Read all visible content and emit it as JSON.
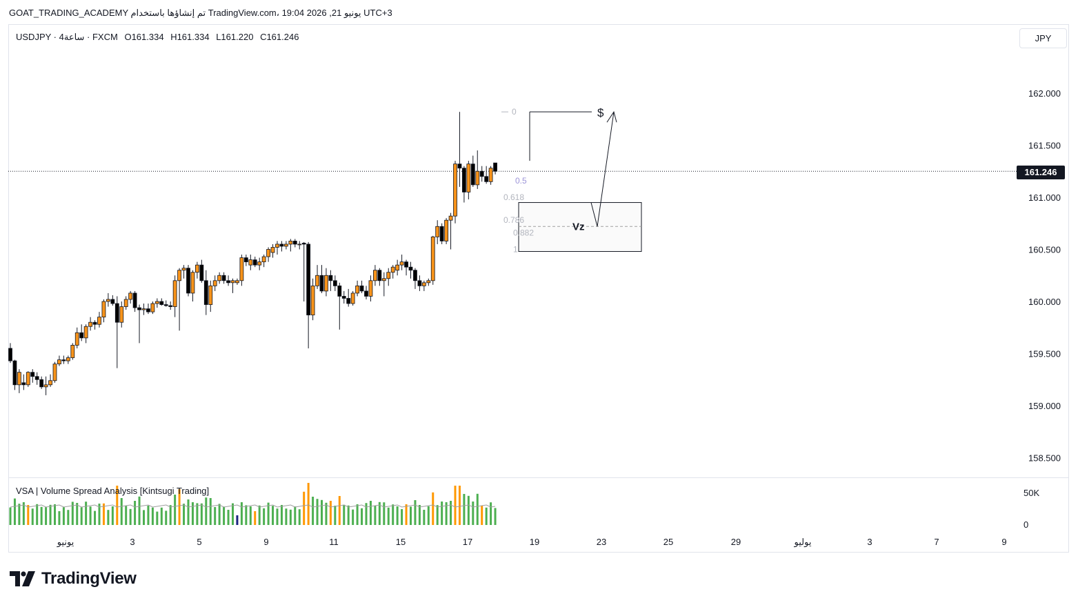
{
  "header": {
    "caption": "GOAT_TRADING_ACADEMY تم إنشاؤها باستخدام TradingView.com، 19:04 2026 ,21 يونيو UTC+3"
  },
  "legend": {
    "symbol": "USDJPY · 4ساعة · FXCM",
    "open": "O161.334",
    "high": "H161.334",
    "low": "L161.220",
    "close": "C161.246"
  },
  "currency_button": "JPY",
  "current_price": "161.246",
  "indicator": {
    "title": "VSA | Volume Spread Analysis [Kintsugi Trading]",
    "axis_labels": [
      "50K",
      "0"
    ]
  },
  "drawing_labels": {
    "dollar": "$",
    "zone": "Vz",
    "fib": [
      "0",
      "0.5",
      "0.618",
      "0.786",
      "0.882",
      "1"
    ]
  },
  "brand": "TradingView",
  "colors": {
    "bull": "#f7931a",
    "bear": "#000000",
    "vol_green": "#4caf50",
    "vol_orange": "#ff9800",
    "vol_navy": "#1a237e",
    "vol_ma": "#9e9e9e"
  },
  "chart_data": {
    "type": "candlestick",
    "symbol": "USDJPY",
    "timeframe": "4H",
    "y_ticks": [
      "162.000",
      "161.500",
      "161.000",
      "160.500",
      "160.000",
      "159.500",
      "159.000",
      "158.500"
    ],
    "ylim": [
      158.3,
      162.4
    ],
    "x_tick_labels": [
      "يونيو",
      "3",
      "5",
      "9",
      "11",
      "15",
      "17",
      "19",
      "23",
      "25",
      "29",
      "يوليو",
      "3",
      "7",
      "9"
    ],
    "candles": [
      [
        159.55,
        159.6,
        159.41,
        159.43
      ],
      [
        159.43,
        159.44,
        159.15,
        159.2
      ],
      [
        159.2,
        159.35,
        159.12,
        159.32
      ],
      [
        159.22,
        159.3,
        159.15,
        159.2
      ],
      [
        159.2,
        159.33,
        159.18,
        159.32
      ],
      [
        159.32,
        159.35,
        159.22,
        159.28
      ],
      [
        159.28,
        159.32,
        159.2,
        159.25
      ],
      [
        159.25,
        159.28,
        159.16,
        159.18
      ],
      [
        159.18,
        159.28,
        159.1,
        159.2
      ],
      [
        159.2,
        159.3,
        159.18,
        159.24
      ],
      [
        159.24,
        159.42,
        159.22,
        159.4
      ],
      [
        159.4,
        159.48,
        159.38,
        159.44
      ],
      [
        159.44,
        159.48,
        159.4,
        159.43
      ],
      [
        159.43,
        159.48,
        159.4,
        159.46
      ],
      [
        159.46,
        159.6,
        159.44,
        159.58
      ],
      [
        159.58,
        159.75,
        159.55,
        159.7
      ],
      [
        159.7,
        159.78,
        159.62,
        159.65
      ],
      [
        159.65,
        159.78,
        159.6,
        159.76
      ],
      [
        159.76,
        159.85,
        159.72,
        159.8
      ],
      [
        159.8,
        159.82,
        159.73,
        159.78
      ],
      [
        159.78,
        159.9,
        159.75,
        159.85
      ],
      [
        159.85,
        160.02,
        159.8,
        160.0
      ],
      [
        160.0,
        160.08,
        159.95,
        160.02
      ],
      [
        160.02,
        160.06,
        159.96,
        159.98
      ],
      [
        159.98,
        160.05,
        159.36,
        159.8
      ],
      [
        159.8,
        160.0,
        159.75,
        159.95
      ],
      [
        159.95,
        160.05,
        159.92,
        160.02
      ],
      [
        160.02,
        160.1,
        159.98,
        160.08
      ],
      [
        160.08,
        160.1,
        159.9,
        159.94
      ],
      [
        159.94,
        159.97,
        159.6,
        159.92
      ],
      [
        159.92,
        159.98,
        159.87,
        159.93
      ],
      [
        159.93,
        159.98,
        159.88,
        159.9
      ],
      [
        159.9,
        160.0,
        159.88,
        159.98
      ],
      [
        159.98,
        160.03,
        159.94,
        160.0
      ],
      [
        160.0,
        160.03,
        159.96,
        159.97
      ],
      [
        159.97,
        160.01,
        159.95,
        159.96
      ],
      [
        159.96,
        160.0,
        159.92,
        159.95
      ],
      [
        159.95,
        160.25,
        159.85,
        160.2
      ],
      [
        160.2,
        160.32,
        159.72,
        160.3
      ],
      [
        160.3,
        160.35,
        160.22,
        160.32
      ],
      [
        160.32,
        160.35,
        160.05,
        160.08
      ],
      [
        160.08,
        160.3,
        160.0,
        160.28
      ],
      [
        160.28,
        160.38,
        160.22,
        160.35
      ],
      [
        160.35,
        160.4,
        160.18,
        160.2
      ],
      [
        160.2,
        160.3,
        159.87,
        159.97
      ],
      [
        159.97,
        160.2,
        159.9,
        160.15
      ],
      [
        160.15,
        160.25,
        160.1,
        160.2
      ],
      [
        160.2,
        160.28,
        160.17,
        160.25
      ],
      [
        160.25,
        160.28,
        160.17,
        160.2
      ],
      [
        160.2,
        160.25,
        160.15,
        160.18
      ],
      [
        160.18,
        160.22,
        160.08,
        160.2
      ],
      [
        160.18,
        160.22,
        160.16,
        160.2
      ],
      [
        160.2,
        160.45,
        160.15,
        160.42
      ],
      [
        160.42,
        160.45,
        160.34,
        160.38
      ],
      [
        160.35,
        160.45,
        160.3,
        160.4
      ],
      [
        160.4,
        160.43,
        160.33,
        160.35
      ],
      [
        160.35,
        160.42,
        160.3,
        160.38
      ],
      [
        160.38,
        160.45,
        160.33,
        160.43
      ],
      [
        160.43,
        160.52,
        160.38,
        160.5
      ],
      [
        160.47,
        160.55,
        160.42,
        160.52
      ],
      [
        160.52,
        160.58,
        160.45,
        160.55
      ],
      [
        160.55,
        160.58,
        160.48,
        160.53
      ],
      [
        160.53,
        160.58,
        160.5,
        160.55
      ],
      [
        160.55,
        160.6,
        160.48,
        160.58
      ],
      [
        160.58,
        160.6,
        160.52,
        160.55
      ],
      [
        160.55,
        160.58,
        160.5,
        160.55
      ],
      [
        160.56,
        160.57,
        160.0,
        160.55
      ],
      [
        160.55,
        160.57,
        159.55,
        159.87
      ],
      [
        159.87,
        160.22,
        159.82,
        160.15
      ],
      [
        160.15,
        160.35,
        160.12,
        160.25
      ],
      [
        160.25,
        160.35,
        160.08,
        160.1
      ],
      [
        160.1,
        160.32,
        160.05,
        160.25
      ],
      [
        160.25,
        160.3,
        160.1,
        160.2
      ],
      [
        160.2,
        160.25,
        160.1,
        160.15
      ],
      [
        160.15,
        160.18,
        159.73,
        160.05
      ],
      [
        160.05,
        160.1,
        159.98,
        160.03
      ],
      [
        160.03,
        160.12,
        159.95,
        159.98
      ],
      [
        159.98,
        160.1,
        159.96,
        160.08
      ],
      [
        160.08,
        160.2,
        160.05,
        160.15
      ],
      [
        160.15,
        160.2,
        160.08,
        160.1
      ],
      [
        160.1,
        160.15,
        160.02,
        160.05
      ],
      [
        160.05,
        160.25,
        160.0,
        160.2
      ],
      [
        160.2,
        160.35,
        160.15,
        160.3
      ],
      [
        160.3,
        160.32,
        160.15,
        160.2
      ],
      [
        160.2,
        160.28,
        160.05,
        160.22
      ],
      [
        160.22,
        160.32,
        160.15,
        160.28
      ],
      [
        160.28,
        160.35,
        160.22,
        160.33
      ],
      [
        160.3,
        160.4,
        160.25,
        160.35
      ],
      [
        160.35,
        160.45,
        160.3,
        160.38
      ],
      [
        160.38,
        160.4,
        160.25,
        160.33
      ],
      [
        160.33,
        160.38,
        160.22,
        160.3
      ],
      [
        160.3,
        160.32,
        160.12,
        160.2
      ],
      [
        160.2,
        160.25,
        160.1,
        160.15
      ],
      [
        160.15,
        160.2,
        160.1,
        160.18
      ],
      [
        160.18,
        160.22,
        160.15,
        160.2
      ],
      [
        160.2,
        160.63,
        160.16,
        160.62
      ],
      [
        160.62,
        160.78,
        160.55,
        160.72
      ],
      [
        160.72,
        160.75,
        160.55,
        160.58
      ],
      [
        160.58,
        160.8,
        160.55,
        160.78
      ],
      [
        160.78,
        160.85,
        160.5,
        160.82
      ],
      [
        160.82,
        161.35,
        160.75,
        161.32
      ],
      [
        161.32,
        161.82,
        161.1,
        161.28
      ],
      [
        161.28,
        161.3,
        160.95,
        161.05
      ],
      [
        161.05,
        161.35,
        160.98,
        161.32
      ],
      [
        161.32,
        161.4,
        161.1,
        161.12
      ],
      [
        161.12,
        161.45,
        161.08,
        161.25
      ],
      [
        161.25,
        161.3,
        161.15,
        161.2
      ],
      [
        161.2,
        161.3,
        161.13,
        161.15
      ],
      [
        161.15,
        161.3,
        161.12,
        161.28
      ],
      [
        161.33,
        161.33,
        161.22,
        161.25
      ]
    ],
    "volume_axis": {
      "labels": [
        "50K",
        "0"
      ]
    },
    "drawings": {
      "fib_levels": [
        "0",
        "0.5",
        "0.618",
        "0.786",
        "0.882",
        "1"
      ],
      "zone_label": "Vz",
      "target_label": "$",
      "zone_top": 160.95,
      "zone_bottom": 160.48,
      "zone_mid": 160.72,
      "high_marker": 161.82
    }
  }
}
